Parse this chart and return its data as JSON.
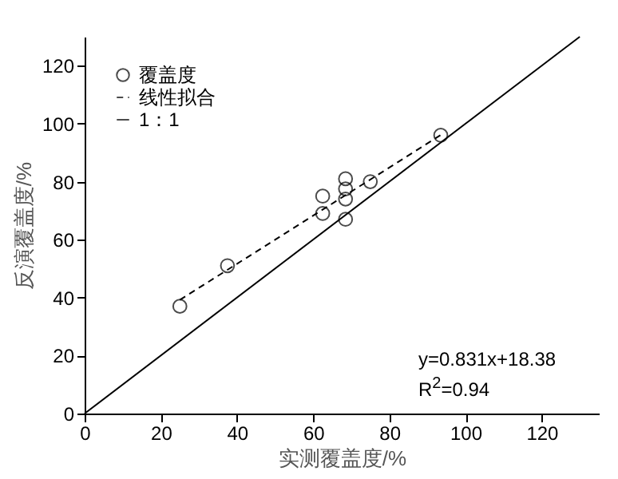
{
  "chart_data": {
    "type": "scatter",
    "xlabel": "实测覆盖度/%",
    "ylabel": "反演覆盖度/%",
    "xlim": [
      0,
      135
    ],
    "ylim": [
      0,
      130
    ],
    "xticks": [
      0,
      20,
      40,
      60,
      80,
      100,
      120
    ],
    "yticks": [
      0,
      20,
      40,
      60,
      80,
      100,
      120
    ],
    "grid": false,
    "legend": "top left",
    "annotations": [
      "y=0.831x+18.38",
      "R$^{2}$=0.94"
    ],
    "series": [
      {
        "name": "覆盖度",
        "marker": "circle",
        "color": "#000000",
        "x": [
          25,
          37.5,
          62.5,
          62.5,
          68.5,
          68.5,
          68.5,
          68.5,
          75,
          93.5
        ],
        "values": [
          37,
          51,
          75,
          69,
          81,
          77.5,
          74,
          67,
          80,
          96
        ]
      },
      {
        "name": "线性拟合",
        "type": "line",
        "line_style": "dashed",
        "color": "#000000",
        "x": [
          25,
          93.5
        ],
        "values": [
          39.2,
          96.1
        ],
        "marker": "none"
      },
      {
        "name": "1：1",
        "type": "line",
        "line_style": "solid",
        "color": "#000000",
        "x": [
          0,
          130
        ],
        "values": [
          0,
          130
        ],
        "marker": "none"
      }
    ]
  }
}
